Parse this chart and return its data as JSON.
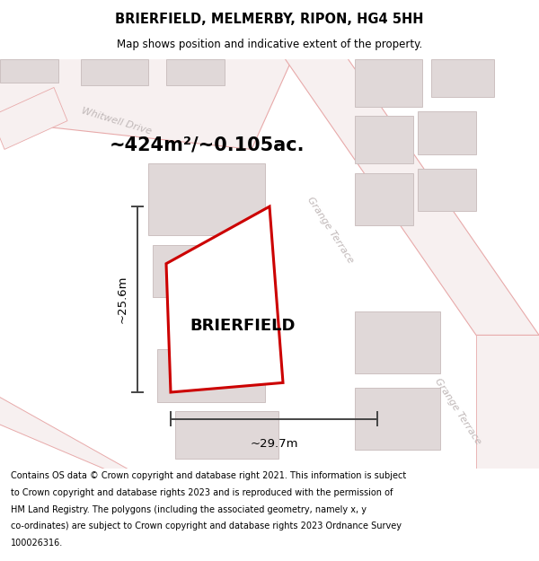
{
  "title": "BRIERFIELD, MELMERBY, RIPON, HG4 5HH",
  "subtitle": "Map shows position and indicative extent of the property.",
  "footer_lines": [
    "Contains OS data © Crown copyright and database right 2021. This information is subject",
    "to Crown copyright and database rights 2023 and is reproduced with the permission of",
    "HM Land Registry. The polygons (including the associated geometry, namely x, y",
    "co-ordinates) are subject to Crown copyright and database rights 2023 Ordnance Survey",
    "100026316."
  ],
  "area_label": "~424m²/~0.105ac.",
  "property_label": "BRIERFIELD",
  "dim_width": "~29.7m",
  "dim_height": "~25.6m",
  "map_bg": "#f7f4f4",
  "road_color": "#e8aaaa",
  "road_fill": "#f7f0f0",
  "building_fill": "#e0d8d8",
  "building_edge": "#ccc0c0",
  "property_color": "#cc0000",
  "property_lw": 2.2,
  "dim_color": "#444444",
  "street_color": "#c0b8b8",
  "title_fontsize": 10.5,
  "subtitle_fontsize": 8.5,
  "footer_fontsize": 7.0,
  "area_fontsize": 15,
  "prop_label_fontsize": 13
}
